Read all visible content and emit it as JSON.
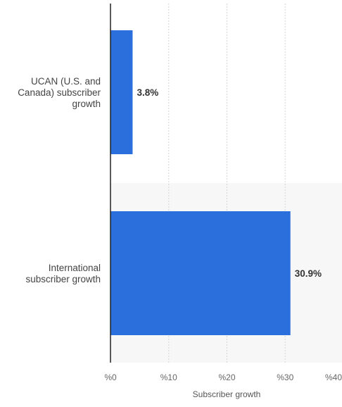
{
  "chart_data": {
    "type": "bar",
    "orientation": "horizontal",
    "categories": [
      [
        "UCAN (U.S. and",
        "Canada) subscriber",
        "growth"
      ],
      [
        "International",
        "subscriber growth"
      ]
    ],
    "values": [
      3.8,
      30.9
    ],
    "value_labels": [
      "3.8%",
      "30.9%"
    ],
    "xlabel": "Subscriber growth",
    "xlim": [
      0,
      40
    ],
    "x_ticks": [
      0,
      10,
      20,
      30,
      40
    ],
    "x_tick_labels": [
      "%0",
      "%10",
      "%20",
      "%30",
      "%40"
    ],
    "grid": true,
    "legend": "none",
    "bar_color": "#2b6fdc",
    "alt_row_shade": "#f7f7f7"
  }
}
